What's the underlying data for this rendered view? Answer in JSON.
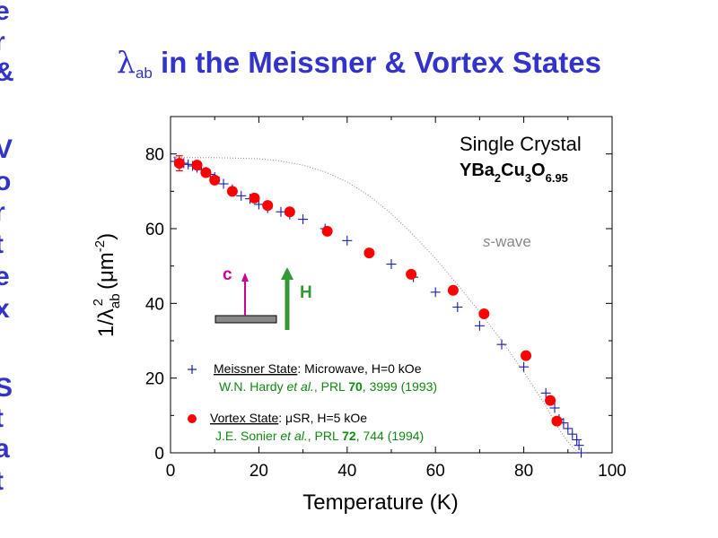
{
  "slide": {
    "title_symbol": "λ",
    "title_subscript": "ab",
    "title_rest": " in the Meissner & Vortex States",
    "side_letters": [
      "e",
      "r",
      "&",
      "V",
      "o",
      "r",
      "t",
      "e",
      "x",
      "S",
      "t",
      "a",
      "t"
    ]
  },
  "colors": {
    "title": "#3333cc",
    "meissner": "#1a1aaa",
    "vortex": "#ff0000",
    "reference": "#118811",
    "c_arrow": "#cc0099",
    "h_arrow": "#339933",
    "swave": "#888888"
  },
  "chart_data": {
    "type": "scatter",
    "xlabel": "Temperature (K)",
    "ylabel_main": "1/λ",
    "ylabel_sub": "ab",
    "ylabel_sup": "2",
    "ylabel_unit_left": "(μm",
    "ylabel_unit_sup": "-2",
    "ylabel_unit_right": ")",
    "xlim": [
      0,
      100
    ],
    "ylim": [
      0,
      90
    ],
    "xticks": [
      0,
      20,
      40,
      60,
      80,
      100
    ],
    "yticks": [
      0,
      20,
      40,
      60,
      80
    ],
    "sample": {
      "line1": "Single Crystal",
      "formula": [
        {
          "text": "YBa",
          "sub": "2"
        },
        {
          "text": "Cu",
          "sub": "3"
        },
        {
          "text": "O",
          "sub": "6.95"
        }
      ]
    },
    "swave_label_italic": "s",
    "swave_label_rest": "-wave",
    "arrows": {
      "c_label": "c",
      "h_label": "H"
    },
    "legend": {
      "meissner_name": "Meissner State",
      "meissner_desc": ": Microwave, H=0 kOe",
      "meissner_ref_pre": "W.N. Hardy ",
      "meissner_ref_etal": "et al.",
      "meissner_ref_mid": ", PRL ",
      "meissner_ref_vol": "70",
      "meissner_ref_post": ", 3999 (1993)",
      "vortex_name": "Vortex State",
      "vortex_desc": ": μSR, H=5 kOe",
      "vortex_ref_pre": "J.E. Sonier ",
      "vortex_ref_etal": "et al.",
      "vortex_ref_mid": ", PRL ",
      "vortex_ref_vol": "72",
      "vortex_ref_post": ", 744 (1994)"
    },
    "series": [
      {
        "name": "Meissner State",
        "marker": "plus",
        "x": [
          1,
          2,
          3,
          4,
          5,
          6,
          7,
          8,
          9,
          10,
          12,
          14,
          16,
          18,
          20,
          22,
          25,
          27,
          30,
          35,
          40,
          45,
          50,
          55,
          60,
          65,
          70,
          75,
          80,
          85,
          87,
          88,
          89,
          90,
          91,
          92,
          92.5,
          93
        ],
        "y": [
          78,
          77.8,
          77.5,
          77.2,
          76.8,
          76.3,
          75.8,
          75.2,
          74.5,
          73.8,
          72,
          70.5,
          68.8,
          68,
          66.5,
          65.5,
          64.5,
          63.8,
          62.5,
          60,
          56.8,
          53.5,
          50.5,
          47,
          43,
          39,
          34,
          29,
          23,
          16,
          12,
          9,
          8,
          6.5,
          5,
          3.5,
          2,
          0
        ]
      },
      {
        "name": "Vortex State",
        "marker": "circle",
        "x": [
          2,
          6,
          8,
          10,
          14,
          19,
          22,
          27,
          35.5,
          45,
          54.5,
          64,
          71,
          80.5,
          86,
          87.5
        ],
        "y": [
          77.5,
          77,
          75,
          73,
          70,
          68.2,
          66.2,
          64.5,
          59.3,
          53.5,
          47.8,
          43.5,
          37.2,
          26,
          14,
          8.5
        ],
        "error_bar_x": 2,
        "error_bar_y": [
          75.5,
          79.5
        ]
      },
      {
        "name": "s-wave",
        "marker": "dotted-line",
        "x": [
          0,
          5,
          10,
          15,
          20,
          25,
          30,
          35,
          40,
          45,
          50,
          55,
          60,
          65,
          70,
          75,
          80,
          85,
          88,
          90,
          91.5,
          92.5
        ],
        "y": [
          79,
          79,
          79,
          78.9,
          78.7,
          78.1,
          77,
          75.2,
          72.5,
          68.8,
          64,
          58.3,
          52,
          45,
          37.7,
          30,
          21.7,
          12.5,
          6.3,
          2.9,
          1,
          0
        ]
      }
    ]
  }
}
